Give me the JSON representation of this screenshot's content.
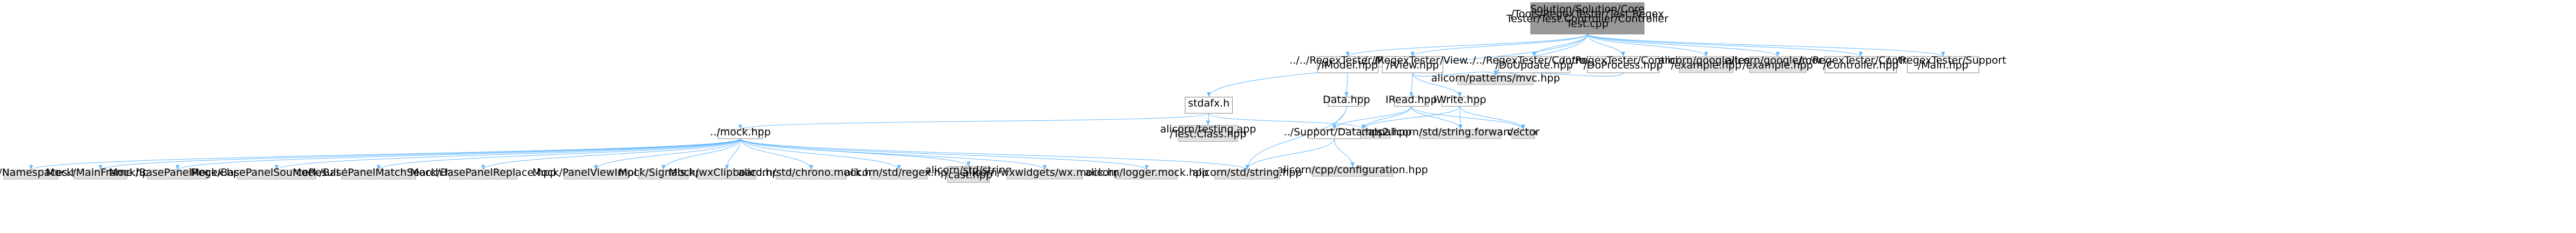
{
  "graph": {
    "root": {
      "id": "root",
      "lines": [
        "Solution/Solution/Core",
        "/Tools/RegexTester/Test.Regex",
        "Tester/Test.Controller/Controller",
        "Test.cpp"
      ],
      "style": "root"
    },
    "nodes": [
      {
        "id": "stdafx",
        "lines": [
          "stdafx.h"
        ],
        "style": "plain"
      },
      {
        "id": "model",
        "lines": [
          "../../RegexTester/Model",
          "/IModel.hpp"
        ],
        "style": "plain"
      },
      {
        "id": "view",
        "lines": [
          "../../RegexTester/View",
          "/IView.hpp"
        ],
        "style": "plain"
      },
      {
        "id": "ctrl_update",
        "lines": [
          "../../RegexTester/Controller",
          "/DoUpdate.hpp"
        ],
        "style": "plain"
      },
      {
        "id": "ctrl_process",
        "lines": [
          "../../RegexTester/Controller",
          "/DoProcess.hpp"
        ],
        "style": "plain"
      },
      {
        "id": "gtest",
        "lines": [
          "alicorn/google/test",
          "/example.hpp"
        ],
        "style": "gray"
      },
      {
        "id": "gmock",
        "lines": [
          "alicorn/google/mock",
          "/example.hpp"
        ],
        "style": "gray"
      },
      {
        "id": "ctrl_hpp",
        "lines": [
          "../../RegexTester/Controller",
          "/Controller.hpp"
        ],
        "style": "plain"
      },
      {
        "id": "support_main",
        "lines": [
          "../../RegexTester/Support",
          "/Main.hpp"
        ],
        "style": "plain"
      },
      {
        "id": "mock",
        "lines": [
          "../mock.hpp"
        ],
        "style": "plain"
      },
      {
        "id": "testclass",
        "lines": [
          "alicorn/testing.app",
          "/Test.Class.hpp"
        ],
        "style": "gray"
      },
      {
        "id": "data",
        "lines": [
          "Data.hpp"
        ],
        "style": "plain"
      },
      {
        "id": "iread",
        "lines": [
          "IRead.hpp"
        ],
        "style": "plain"
      },
      {
        "id": "iwrite",
        "lines": [
          "IWrite.hpp"
        ],
        "style": "plain"
      },
      {
        "id": "mvc",
        "lines": [
          "alicorn/patterns/mvc.hpp"
        ],
        "style": "gray"
      },
      {
        "id": "signals2",
        "lines": [
          "boost/signals2.hpp"
        ],
        "style": "gray"
      },
      {
        "id": "support_data",
        "lines": [
          "../Support/Data.hpp"
        ],
        "style": "plain"
      },
      {
        "id": "fwd",
        "lines": [
          "alicorn/std/string.forward.hpp"
        ],
        "style": "gray"
      },
      {
        "id": "vector",
        "lines": [
          "vector"
        ],
        "style": "gray"
      },
      {
        "id": "cppconf",
        "lines": [
          "alicorn/cpp/configuration.hpp"
        ],
        "style": "gray"
      },
      {
        "id": "stdstring",
        "lines": [
          "alicorn/std/string.hpp"
        ],
        "style": "gray"
      },
      {
        "id": "m_ns",
        "lines": [
          "Mock/Namespaces.hpp"
        ],
        "style": "gray"
      },
      {
        "id": "m_mf",
        "lines": [
          "Mock/MainFrame.hpp"
        ],
        "style": "gray"
      },
      {
        "id": "m_bpr",
        "lines": [
          "Mock/BasePanelRegex.hpp"
        ],
        "style": "gray"
      },
      {
        "id": "m_bpsr",
        "lines": [
          "Mock/BasePanelSourceResult.hpp"
        ],
        "style": "gray"
      },
      {
        "id": "m_bpms",
        "lines": [
          "Mock/BasePanelMatchSearch.hpp"
        ],
        "style": "gray"
      },
      {
        "id": "m_bprep",
        "lines": [
          "Mock/BasePanelReplace.hpp"
        ],
        "style": "gray"
      },
      {
        "id": "m_pvi",
        "lines": [
          "Mock/PanelViewImpl.hpp"
        ],
        "style": "gray"
      },
      {
        "id": "m_sig",
        "lines": [
          "Mock/Signals.hpp"
        ],
        "style": "gray"
      },
      {
        "id": "m_wxc",
        "lines": [
          "Mock/wxClipboard.hpp"
        ],
        "style": "gray"
      },
      {
        "id": "chrono",
        "lines": [
          "alicorn/std/chrono.mock.hpp"
        ],
        "style": "gray"
      },
      {
        "id": "regex",
        "lines": [
          "alicorn/std/regex.hpp"
        ],
        "style": "gray"
      },
      {
        "id": "strcast",
        "lines": [
          "alicorn/std/string",
          "/cast.hpp"
        ],
        "style": "gray"
      },
      {
        "id": "wxw",
        "lines": [
          "alicorn/wxwidgets/wx.mock.hpp"
        ],
        "style": "gray"
      },
      {
        "id": "logger",
        "lines": [
          "alicorn/logger.mock.hpp"
        ],
        "style": "gray"
      }
    ],
    "edges": [
      [
        "root",
        "stdafx"
      ],
      [
        "root",
        "model"
      ],
      [
        "root",
        "view"
      ],
      [
        "root",
        "ctrl_update"
      ],
      [
        "root",
        "ctrl_process"
      ],
      [
        "root",
        "gtest"
      ],
      [
        "root",
        "gmock"
      ],
      [
        "root",
        "ctrl_hpp"
      ],
      [
        "root",
        "support_main"
      ],
      [
        "root",
        "mvc"
      ],
      [
        "stdafx",
        "mock"
      ],
      [
        "stdafx",
        "testclass"
      ],
      [
        "stdafx",
        "signals2"
      ],
      [
        "model",
        "data"
      ],
      [
        "view",
        "iread"
      ],
      [
        "view",
        "iwrite"
      ],
      [
        "view",
        "mvc"
      ],
      [
        "ctrl_update",
        "mvc"
      ],
      [
        "ctrl_process",
        "mvc"
      ],
      [
        "data",
        "support_data"
      ],
      [
        "data",
        "stdstring"
      ],
      [
        "iread",
        "signals2"
      ],
      [
        "iread",
        "fwd"
      ],
      [
        "iread",
        "vector"
      ],
      [
        "iread",
        "support_data"
      ],
      [
        "iwrite",
        "signals2"
      ],
      [
        "iwrite",
        "fwd"
      ],
      [
        "iwrite",
        "vector"
      ],
      [
        "support_data",
        "cppconf"
      ],
      [
        "support_data",
        "stdstring"
      ],
      [
        "mock",
        "m_ns"
      ],
      [
        "mock",
        "m_mf"
      ],
      [
        "mock",
        "m_bpr"
      ],
      [
        "mock",
        "m_bpsr"
      ],
      [
        "mock",
        "m_bpms"
      ],
      [
        "mock",
        "m_bprep"
      ],
      [
        "mock",
        "m_pvi"
      ],
      [
        "mock",
        "m_sig"
      ],
      [
        "mock",
        "m_wxc"
      ],
      [
        "mock",
        "chrono"
      ],
      [
        "mock",
        "regex"
      ],
      [
        "mock",
        "strcast"
      ],
      [
        "mock",
        "wxw"
      ],
      [
        "mock",
        "logger"
      ],
      [
        "mock",
        "stdstring"
      ]
    ]
  },
  "colors": {
    "root_fill": "#999999",
    "root_stroke": "#666666",
    "gray_fill": "#e0e0e0",
    "gray_stroke": "#999999",
    "plain_fill": "#ffffff",
    "plain_stroke": "#666666",
    "edge": "#63b8ff"
  }
}
